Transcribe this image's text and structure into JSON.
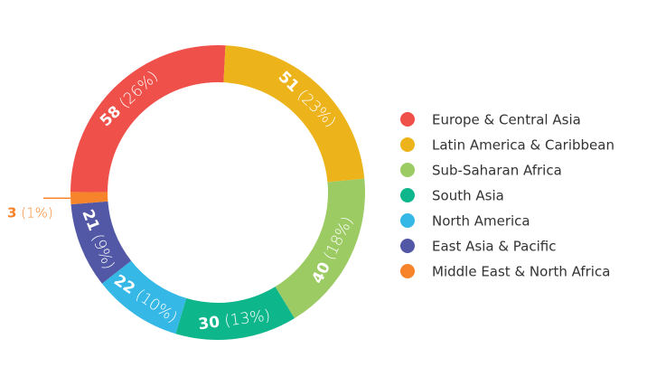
{
  "chart_data": {
    "type": "donut",
    "categories": [
      "Europe & Central Asia",
      "Latin America & Caribbean",
      "Sub-Saharan Africa",
      "South Asia",
      "North America",
      "East Asia & Pacific",
      "Middle East & North Africa"
    ],
    "values": [
      58,
      51,
      40,
      30,
      22,
      21,
      3
    ],
    "percent_labels": [
      "(26%)",
      "(23%)",
      "(18%)",
      "(13%)",
      "(10%)",
      "(9%)",
      "(1%)"
    ],
    "colors": [
      "#ef5049",
      "#ecb31a",
      "#9ccb63",
      "#0db68b",
      "#35b8e6",
      "#5358a6",
      "#f7842a"
    ],
    "legend": "right"
  }
}
